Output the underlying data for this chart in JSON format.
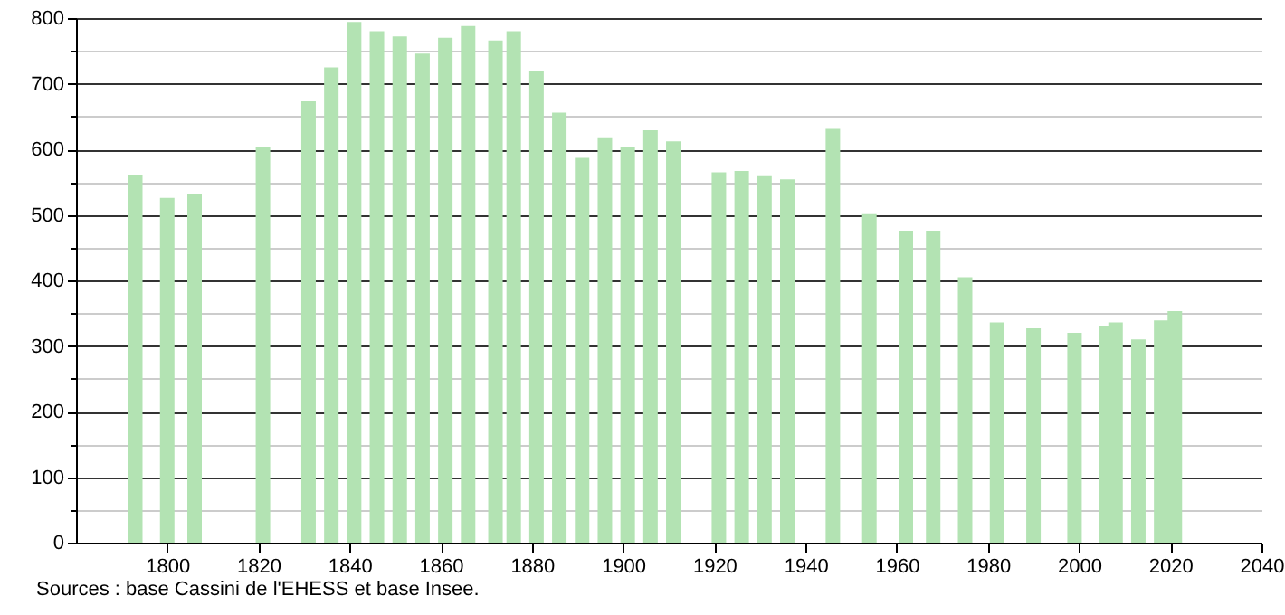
{
  "chart_data": {
    "type": "bar",
    "color": "#b3e3b3",
    "x": [
      1793,
      1800,
      1806,
      1821,
      1831,
      1836,
      1841,
      1846,
      1851,
      1856,
      1861,
      1866,
      1872,
      1876,
      1881,
      1886,
      1891,
      1896,
      1901,
      1906,
      1911,
      1921,
      1926,
      1931,
      1936,
      1946,
      1954,
      1962,
      1968,
      1975,
      1982,
      1990,
      1999,
      2006,
      2008,
      2013,
      2018,
      2021
    ],
    "values": [
      560,
      526,
      531,
      603,
      673,
      725,
      794,
      780,
      772,
      746,
      770,
      788,
      766,
      780,
      719,
      656,
      587,
      617,
      604,
      629,
      612,
      565,
      567,
      559,
      554,
      631,
      501,
      476,
      476,
      405,
      336,
      327,
      320,
      331,
      336,
      310,
      339,
      353
    ],
    "xlim": [
      1780,
      2040
    ],
    "xticks": [
      1800,
      1820,
      1840,
      1860,
      1880,
      1900,
      1920,
      1940,
      1960,
      1980,
      2000,
      2020,
      2040
    ],
    "ylim": [
      0,
      800
    ],
    "yticks": [
      0,
      {
        "value": 50,
        "label": null
      },
      100,
      {
        "value": 150,
        "label": null
      },
      200,
      {
        "value": 250,
        "label": null
      },
      300,
      {
        "value": 350,
        "label": null
      },
      400,
      {
        "value": 450,
        "label": null
      },
      500,
      {
        "value": 550,
        "label": null
      },
      600,
      {
        "value": 650,
        "label": null
      },
      700,
      {
        "value": 750,
        "label": null
      },
      800
    ],
    "grid": "y",
    "annotations": [
      "Sources : base Cassini de l'EHESS et base Insee."
    ]
  }
}
